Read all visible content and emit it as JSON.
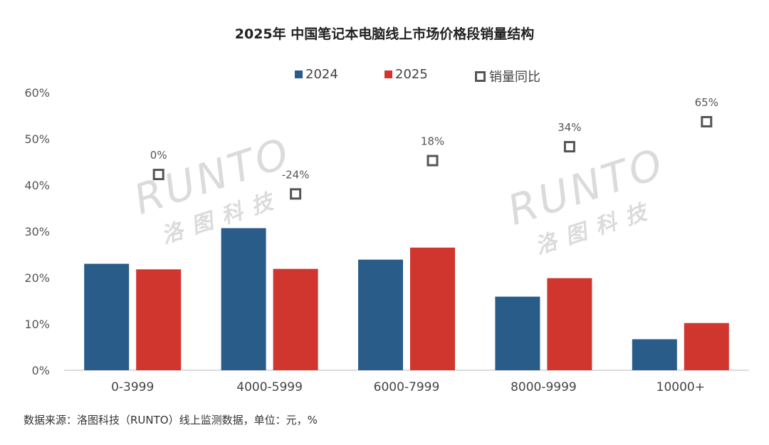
{
  "chart_data": {
    "type": "bar",
    "title": "2025年 中国笔记本电脑线上市场价格段销量结构",
    "categories": [
      "0-3999",
      "4000-5999",
      "6000-7999",
      "8000-9999",
      "10000+"
    ],
    "series": [
      {
        "name": "2024",
        "values": [
          23,
          30.7,
          23.9,
          15.9,
          6.7
        ],
        "color": "#2a5c8a"
      },
      {
        "name": "2025",
        "values": [
          21.8,
          21.9,
          26.5,
          19.9,
          10.2
        ],
        "color": "#d0352e"
      }
    ],
    "yoy": {
      "name": "销量同比",
      "labels": [
        "0%",
        "-24%",
        "18%",
        "34%",
        "65%"
      ],
      "marker_positions": [
        42.3,
        38.1,
        45.3,
        48.3,
        53.7
      ]
    },
    "yticks": [
      "0%",
      "10%",
      "20%",
      "30%",
      "40%",
      "50%",
      "60%"
    ],
    "ylim": [
      0,
      60
    ],
    "grid": false,
    "legend_position": "top"
  },
  "source_note": "数据来源：洛图科技（RUNTO）线上监测数据，单位：元，%",
  "watermark": {
    "brand": "RUNTO",
    "cn": "洛图科技"
  }
}
